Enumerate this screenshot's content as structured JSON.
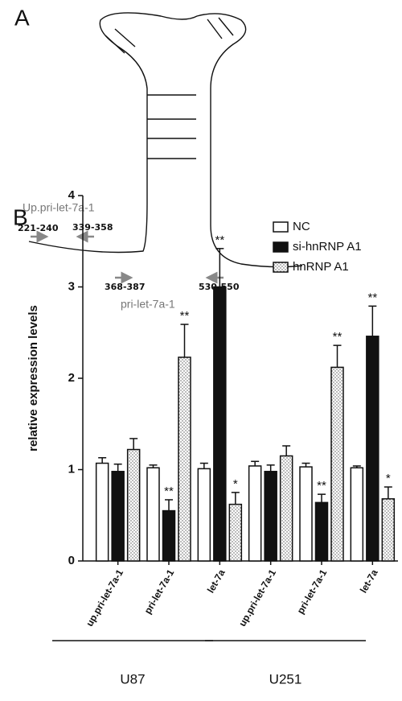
{
  "panel_a": {
    "label": "A",
    "upstream_label": "Up.pri-let-7a-1",
    "primary_label": "pri-let-7a-1",
    "primers": [
      "221-240",
      "339-358",
      "368-387",
      "530-550"
    ]
  },
  "chart_data": {
    "type": "bar",
    "panel_label": "B",
    "y_label": "relative expression levels",
    "categories": [
      "up.pri-let-7a-1",
      "pri-let-7a-1",
      "let-7a",
      "up.pri-let-7a-1",
      "pri-let-7a-1",
      "let-7a"
    ],
    "group_labels": [
      "U87",
      "U251"
    ],
    "series": [
      {
        "name": "NC",
        "color": "#ffffff",
        "values": [
          1.07,
          1.02,
          1.01,
          1.04,
          1.03,
          1.02
        ],
        "error": [
          0.06,
          0.03,
          0.06,
          0.05,
          0.04,
          0.02
        ],
        "annotations": [
          null,
          null,
          null,
          null,
          null,
          null
        ]
      },
      {
        "name": "si-hnRNP A1",
        "color": "#111111",
        "values": [
          0.98,
          0.55,
          3.0,
          0.98,
          0.64,
          2.46
        ],
        "error": [
          0.08,
          0.12,
          0.42,
          0.07,
          0.09,
          0.33
        ],
        "annotations": [
          null,
          "**",
          "**",
          null,
          "**",
          "**"
        ]
      },
      {
        "name": "hnRNP A1",
        "color": "#ffffff",
        "fill_pattern": "dots",
        "values": [
          1.22,
          2.23,
          0.62,
          1.15,
          2.12,
          0.68
        ],
        "error": [
          0.12,
          0.36,
          0.13,
          0.11,
          0.24,
          0.13
        ],
        "annotations": [
          null,
          "**",
          "*",
          null,
          "**",
          "*"
        ]
      }
    ],
    "ylim": [
      0,
      4
    ],
    "yticks": [
      0,
      1,
      2,
      3,
      4
    ],
    "legend": "upper right"
  }
}
